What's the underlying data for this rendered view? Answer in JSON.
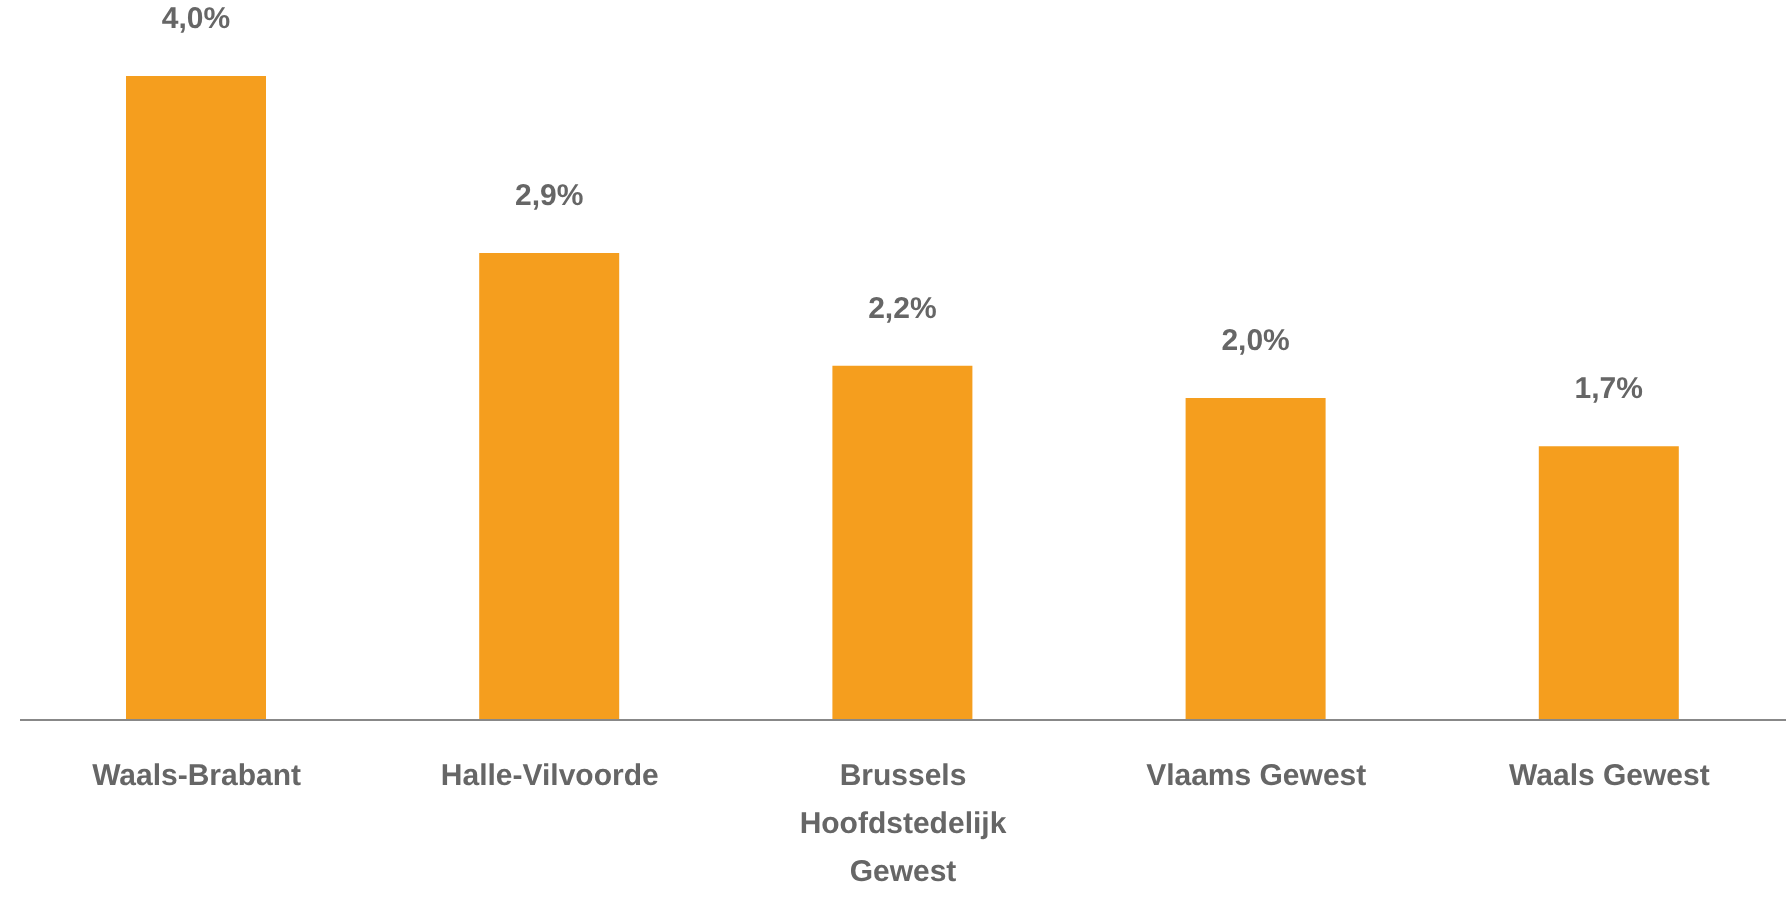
{
  "chart_data": {
    "type": "bar",
    "categories": [
      "Waals-Brabant",
      "Halle-Vilvoorde",
      "Brussels Hoofdstedelijk Gewest",
      "Vlaams Gewest",
      "Waals Gewest"
    ],
    "values": [
      4.0,
      2.9,
      2.2,
      2.0,
      1.7
    ],
    "value_labels": [
      "4,0%",
      "2,9%",
      "2,2%",
      "2,0%",
      "1,7%"
    ],
    "color": "#f59e1e",
    "grid": false,
    "legend": false
  }
}
